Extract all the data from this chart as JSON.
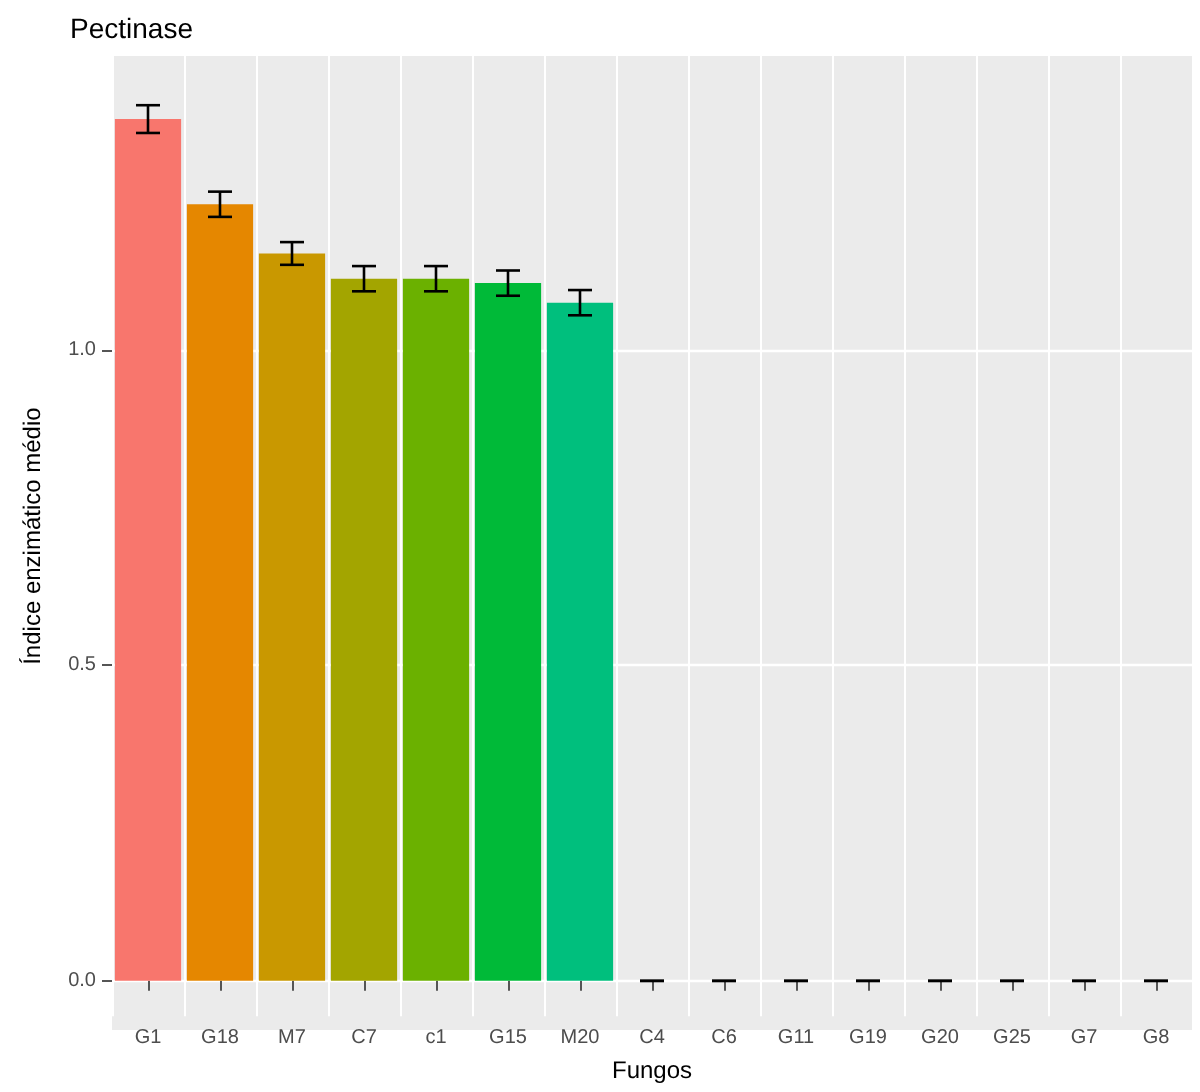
{
  "chart_data": {
    "type": "bar",
    "title": "Pectinase",
    "xlabel": "Fungos",
    "ylabel": "Índice enzimático médio",
    "categories": [
      "G1",
      "G18",
      "M7",
      "C7",
      "c1",
      "G15",
      "M20",
      "C4",
      "C6",
      "G11",
      "G19",
      "G20",
      "G25",
      "G7",
      "G8"
    ],
    "values": [
      1.366,
      1.231,
      1.153,
      1.113,
      1.113,
      1.106,
      1.075,
      0,
      0,
      0,
      0,
      0,
      0,
      0,
      0
    ],
    "errors": [
      0.022,
      0.02,
      0.018,
      0.02,
      0.02,
      0.02,
      0.02,
      0,
      0,
      0,
      0,
      0,
      0,
      0,
      0
    ],
    "colors": [
      "#f8766d",
      "#e58700",
      "#c99800",
      "#a3a500",
      "#6bb100",
      "#00ba38",
      "#00bf7d",
      "#00c0af",
      "#00bcd8",
      "#00b0f6",
      "#619cff",
      "#b983ff",
      "#e76bf3",
      "#fd61d1",
      "#ff67a4"
    ],
    "ylim": [
      -0.056,
      1.466
    ],
    "yticks": [
      {
        "value": 0,
        "label": "0.0"
      },
      {
        "value": 0.5,
        "label": "0.5"
      },
      {
        "value": 1,
        "label": "1.0"
      }
    ],
    "grid": true
  }
}
